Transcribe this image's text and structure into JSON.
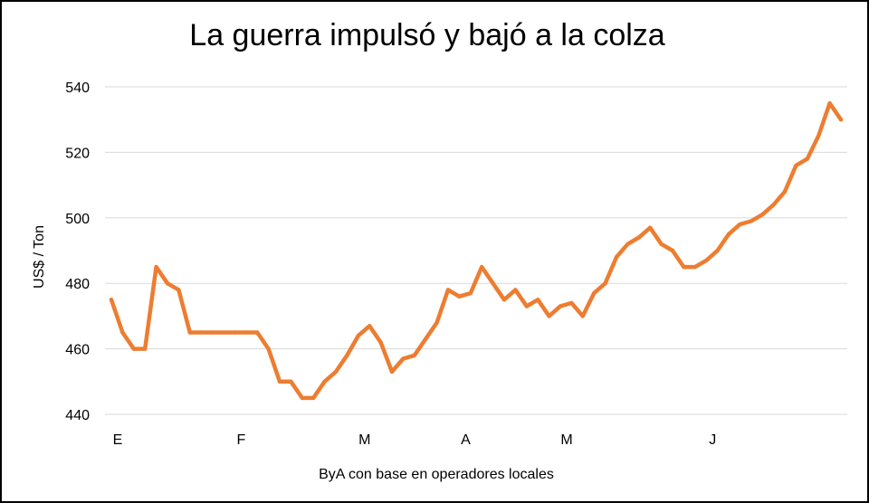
{
  "chart_data": {
    "type": "line",
    "title": "La guerra impulsó y bajó a la colza",
    "ylabel": "US$ / Ton",
    "xlabel": "",
    "source": "ByA con base en  operadores locales",
    "ylim": [
      440,
      540
    ],
    "yticks": [
      440,
      460,
      480,
      500,
      520,
      540
    ],
    "grid": true,
    "x_tick_labels": [
      {
        "label": "E",
        "index": 0
      },
      {
        "label": "F",
        "index": 11
      },
      {
        "label": "M",
        "index": 22
      },
      {
        "label": "A",
        "index": 31
      },
      {
        "label": "M",
        "index": 40
      },
      {
        "label": "J",
        "index": 53
      }
    ],
    "series": [
      {
        "color": "#ED7D31",
        "values": [
          475,
          465,
          460,
          460,
          485,
          480,
          478,
          465,
          465,
          465,
          465,
          465,
          465,
          465,
          460,
          450,
          450,
          445,
          445,
          450,
          453,
          458,
          464,
          467,
          462,
          453,
          457,
          458,
          463,
          468,
          478,
          476,
          477,
          485,
          480,
          475,
          478,
          473,
          475,
          470,
          473,
          474,
          470,
          477,
          480,
          488,
          492,
          494,
          497,
          492,
          490,
          485,
          485,
          487,
          490,
          495,
          498,
          499,
          501,
          504,
          508,
          516,
          518,
          525,
          535,
          530
        ]
      }
    ]
  }
}
